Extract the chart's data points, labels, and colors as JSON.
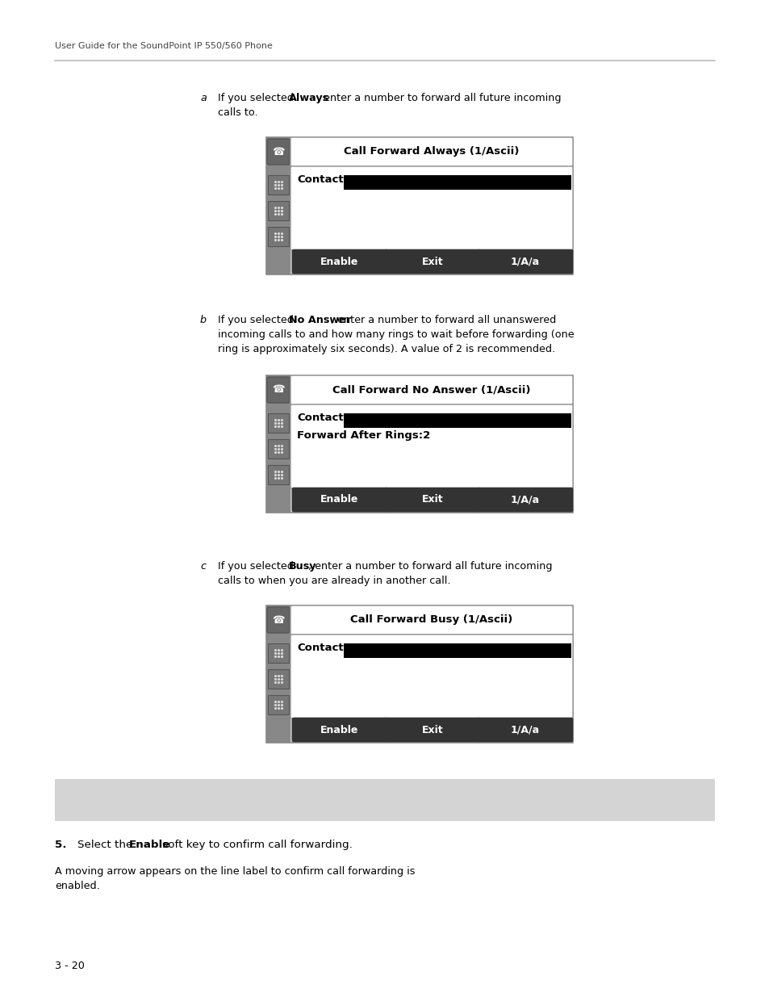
{
  "bg_color": "#ffffff",
  "header_text": "User Guide for the SoundPoint IP 550/560 Phone",
  "header_line_color": "#bbbbbb",
  "footer_text": "3 - 20",
  "sections": [
    {
      "label": "a",
      "line1_pre": "If you selected ",
      "line1_bold": "Always",
      "line1_post": ", enter a number to forward all future incoming",
      "line2": "calls to.",
      "line3": "",
      "line4": "",
      "screen_title": "Call Forward Always (1/Ascii)",
      "contact_label": "Contact:",
      "extra_line": "",
      "buttons": [
        "Enable",
        "Exit",
        "1/A/a"
      ]
    },
    {
      "label": "b",
      "line1_pre": "If you selected ",
      "line1_bold": "No Answer",
      "line1_post": ", enter a number to forward all unanswered",
      "line2": "incoming calls to and how many rings to wait before forwarding (one",
      "line3": "ring is approximately six seconds). A value of 2 is recommended.",
      "line4": "",
      "screen_title": "Call Forward No Answer (1/Ascii)",
      "contact_label": "Contact:",
      "extra_line": "Forward After Rings:2",
      "buttons": [
        "Enable",
        "Exit",
        "1/A/a"
      ]
    },
    {
      "label": "c",
      "line1_pre": "If you selected ",
      "line1_bold": "Busy",
      "line1_post": ", enter a number to forward all future incoming",
      "line2": "calls to when you are already in another call.",
      "line3": "",
      "line4": "",
      "screen_title": "Call Forward Busy (1/Ascii)",
      "contact_label": "Contact:",
      "extra_line": "",
      "buttons": [
        "Enable",
        "Exit",
        "1/A/a"
      ]
    }
  ],
  "gray_box_color": "#d4d4d4",
  "step5_num": "5.",
  "step5_pre": "Select the ",
  "step5_bold": "Enable",
  "step5_post": " soft key to confirm call forwarding.",
  "step5_sub1": "A moving arrow appears on the line label to confirm call forwarding is",
  "step5_sub2": "enabled."
}
